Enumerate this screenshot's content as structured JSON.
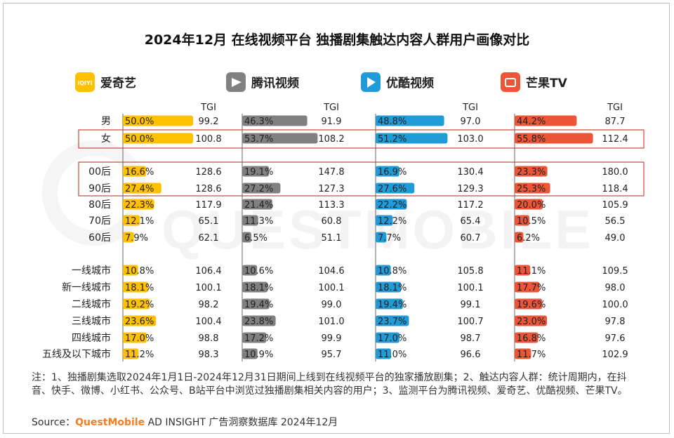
{
  "title": "2024年12月 在线视频平台 独播剧集触达内容人群用户画像对比",
  "chart_data": {
    "type": "bar",
    "title": "2024年12月 在线视频平台 独播剧集触达内容人群用户画像对比",
    "tgi_label": "TGI",
    "categories": [
      "男",
      "女",
      "00后",
      "90后",
      "80后",
      "70后",
      "60后",
      "一线城市",
      "新一线城市",
      "二线城市",
      "三线城市",
      "四线城市",
      "五线及以下城市"
    ],
    "series": [
      {
        "name": "爱奇艺",
        "logo_text": "iQIYI",
        "color": "#ffc000",
        "values": [
          50.0,
          50.0,
          16.6,
          27.4,
          22.3,
          12.1,
          7.9,
          10.8,
          18.1,
          19.2,
          23.6,
          17.0,
          11.2
        ],
        "tgi": [
          99.2,
          100.8,
          128.6,
          128.6,
          117.9,
          65.1,
          62.1,
          106.4,
          100.1,
          98.2,
          100.4,
          98.8,
          98.3
        ]
      },
      {
        "name": "腾讯视频",
        "logo_text": "",
        "color": "#808080",
        "values": [
          46.3,
          53.7,
          19.1,
          27.2,
          21.4,
          11.3,
          6.5,
          10.6,
          18.1,
          19.4,
          23.8,
          17.2,
          10.9
        ],
        "tgi": [
          91.9,
          108.2,
          147.8,
          127.3,
          113.3,
          60.8,
          51.1,
          104.6,
          100.1,
          99.0,
          101.0,
          99.9,
          95.7
        ]
      },
      {
        "name": "优酷视频",
        "logo_text": "",
        "color": "#1f9bd7",
        "values": [
          48.8,
          51.2,
          16.9,
          27.6,
          22.2,
          12.2,
          7.7,
          10.8,
          18.1,
          19.4,
          23.7,
          17.0,
          11.0
        ],
        "tgi": [
          97.0,
          103.0,
          130.4,
          129.3,
          117.2,
          65.4,
          60.7,
          105.8,
          100.1,
          99.1,
          100.7,
          98.7,
          96.6
        ]
      },
      {
        "name": "芒果TV",
        "logo_text": "",
        "color": "#ed5537",
        "values": [
          44.2,
          55.8,
          23.3,
          25.3,
          20.0,
          10.5,
          6.2,
          11.1,
          17.7,
          19.6,
          23.0,
          16.8,
          11.7
        ],
        "tgi": [
          87.7,
          112.4,
          180.0,
          118.4,
          105.9,
          56.5,
          49.0,
          109.5,
          98.0,
          100.0,
          97.8,
          97.6,
          102.9
        ]
      }
    ]
  },
  "watermark": "QUESTMOBILE",
  "notes": "注：1、独播剧集选取2024年1月1日-2024年12月31日期间上线到在线视频平台的独家播放剧集；2、触达内容人群：统计周期内，在抖音、快手、微博、小红书、公众号、B站平台中浏览过独播剧集相关内容的用户；3、监测平台为腾讯视频、爱奇艺、优酷视频、芒果TV。",
  "source": {
    "label": "Source：",
    "brand": "QuestMobile",
    "rest": " AD INSIGHT 广告洞察数据库 2024年12月"
  }
}
